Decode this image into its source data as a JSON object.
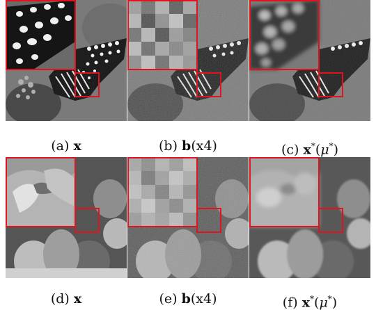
{
  "figure": {
    "panels": [
      {
        "id": "a",
        "letter": "(a)",
        "main": "x",
        "suffix": "",
        "image": "butterfly-clean"
      },
      {
        "id": "b",
        "letter": "(b)",
        "main": "b",
        "suffix": "(x4)",
        "image": "butterfly-downsampled-noisy"
      },
      {
        "id": "c",
        "letter": "(c)",
        "main": "x",
        "sup": "*",
        "arg": "μ",
        "argsup": "*",
        "image": "butterfly-reconstructed"
      },
      {
        "id": "d",
        "letter": "(d)",
        "main": "x",
        "suffix": "",
        "image": "peppers-clean"
      },
      {
        "id": "e",
        "letter": "(e)",
        "main": "b",
        "suffix": "(x4)",
        "image": "peppers-downsampled-noisy"
      },
      {
        "id": "f",
        "letter": "(f)",
        "main": "x",
        "sup": "*",
        "arg": "μ",
        "argsup": "*",
        "image": "peppers-reconstructed"
      }
    ],
    "highlight_color": "#e0141e"
  }
}
